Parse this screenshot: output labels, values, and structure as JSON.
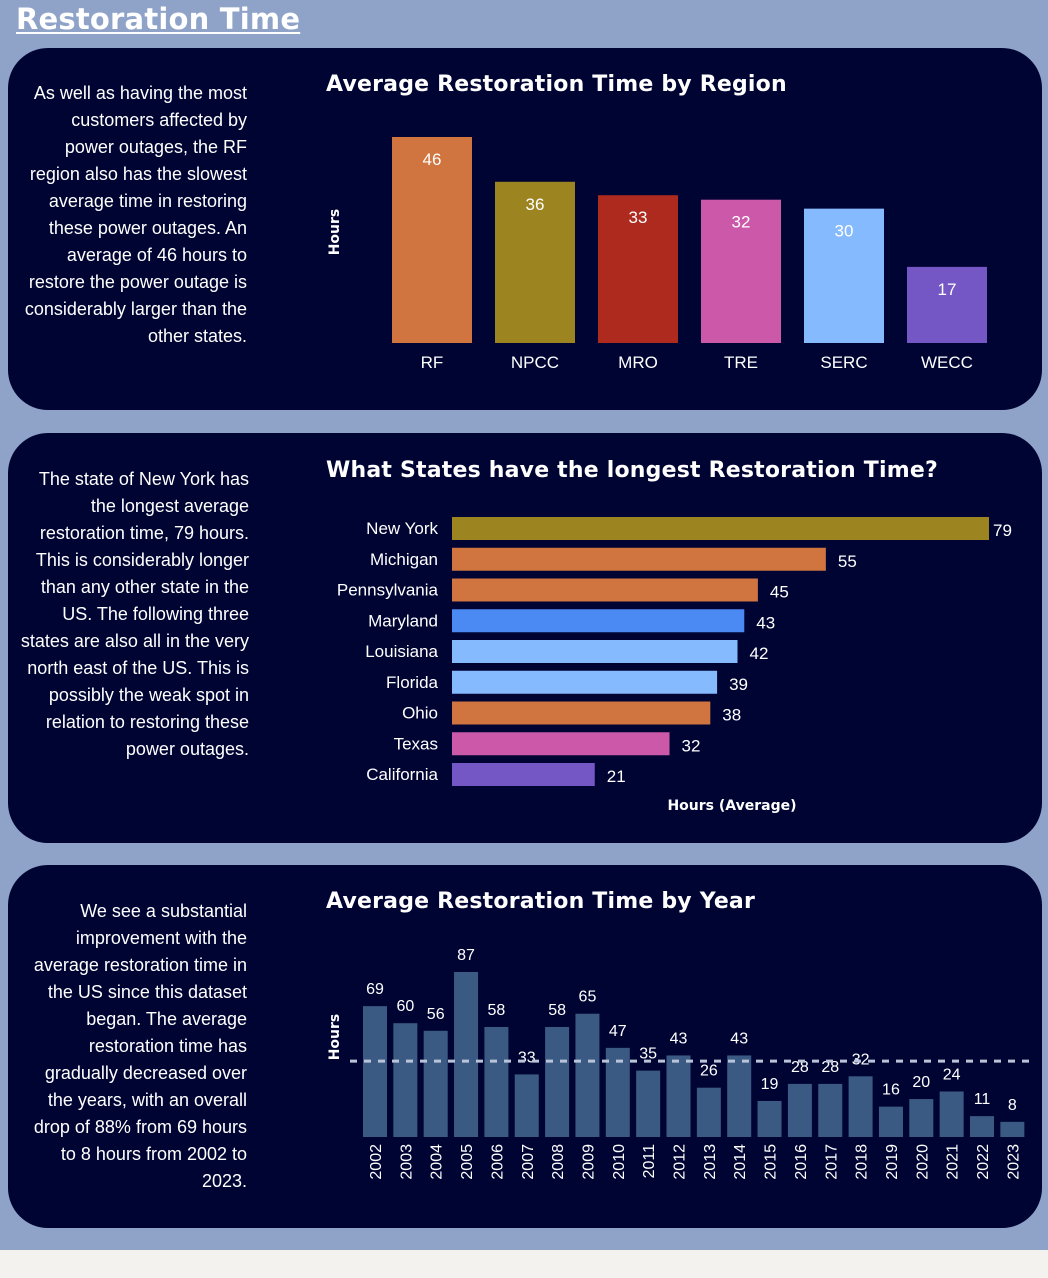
{
  "page_title": "Restoration Time",
  "panels": [
    {
      "description": "As well as having the most customers affected by power outages, the RF region also has the slowest average time in restoring these power outages. An average of 46 hours to restore the power outage is considerably larger than the other states.",
      "description_lines": [
        "As well as having the most",
        "customers affected by",
        "power outages, the RF",
        "region also has the slowest",
        "average time in restoring",
        "these power outages. An",
        "average of 46 hours to",
        "restore the power outage is",
        "considerably larger than the",
        "other states."
      ]
    },
    {
      "description": "The state of New York has the longest average restoration time, 79 hours. This is considerably longer than any other state in the US. The following three states are also all in the very north east of the US. This is possibly the weak spot in relation to restoring these power outages.",
      "description_lines": [
        "The state of New York has",
        "the longest average",
        "restoration time, 79 hours.",
        "This is considerably longer",
        "than any other state in the",
        "US. The following three",
        "states are also all in the very",
        "north east of the US. This is",
        "possibly the weak spot in",
        "relation to restoring these",
        "power outages."
      ]
    },
    {
      "description": "We see a substantial improvement with the average restoration time in the US since this dataset began. The average restoration time has gradually decreased over the years, with an overall drop of 88% from 69 hours to 8 hours from 2002 to 2023.",
      "description_lines": [
        "We see a substantial",
        "improvement with the",
        "average restoration time in",
        "the US since this dataset",
        "began. The average",
        "restoration time has",
        "gradually decreased over",
        "the years, with an overall",
        "drop of 88% from 69 hours",
        "to 8 hours from 2002 to",
        "2023."
      ]
    }
  ],
  "chart_data": [
    {
      "type": "bar",
      "title": "Average Restoration Time by Region",
      "xlabel": "",
      "ylabel": "Hours",
      "categories": [
        "RF",
        "NPCC",
        "MRO",
        "TRE",
        "SERC",
        "WECC"
      ],
      "values": [
        46,
        36,
        33,
        32,
        30,
        17
      ],
      "colors": [
        "#d07440",
        "#9c8520",
        "#ae2a1e",
        "#cb58a8",
        "#86baff",
        "#7456c4"
      ],
      "ylim": [
        0,
        46
      ],
      "grid": false
    },
    {
      "type": "bar",
      "orientation": "horizontal",
      "title": "What States have the longest Restoration Time?",
      "xlabel": "Hours (Average)",
      "ylabel": "",
      "categories": [
        "New York",
        "Michigan",
        "Pennsylvania",
        "Maryland",
        "Louisiana",
        "Florida",
        "Ohio",
        "Texas",
        "California"
      ],
      "values": [
        79,
        55,
        45,
        43,
        42,
        39,
        38,
        32,
        21
      ],
      "colors": [
        "#9c8520",
        "#d07440",
        "#d07440",
        "#4a8af2",
        "#86baff",
        "#86baff",
        "#d07440",
        "#cb58a8",
        "#7456c4"
      ],
      "xlim": [
        0,
        79
      ],
      "grid": false
    },
    {
      "type": "bar",
      "title": "Average Restoration Time by Year",
      "xlabel": "",
      "ylabel": "Hours",
      "categories": [
        "2002",
        "2003",
        "2004",
        "2005",
        "2006",
        "2007",
        "2008",
        "2009",
        "2010",
        "2011",
        "2012",
        "2013",
        "2014",
        "2015",
        "2016",
        "2017",
        "2018",
        "2019",
        "2020",
        "2021",
        "2022",
        "2023"
      ],
      "values": [
        69,
        60,
        56,
        87,
        58,
        33,
        58,
        65,
        47,
        35,
        43,
        26,
        43,
        19,
        28,
        28,
        32,
        16,
        20,
        24,
        11,
        8
      ],
      "color": "#3a5a84",
      "average_line": 40,
      "average_line_color": "#b9c4d8",
      "ylim": [
        0,
        87
      ],
      "grid": false
    }
  ]
}
